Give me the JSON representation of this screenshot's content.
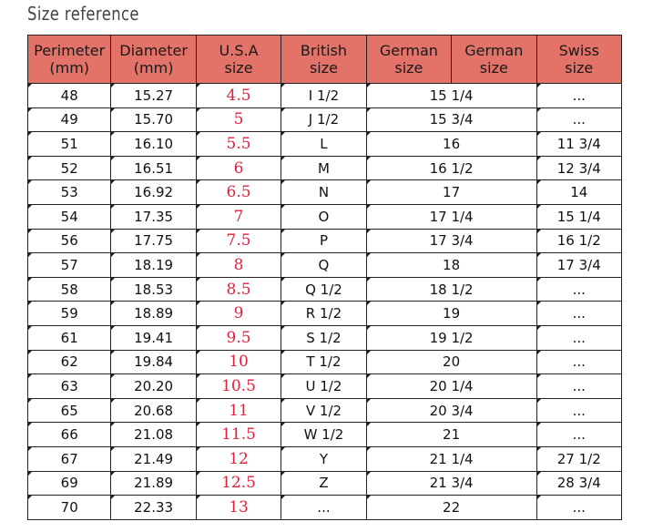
{
  "title": "Size reference",
  "headers": {
    "perimeter": [
      "Perimeter",
      "(mm)"
    ],
    "diameter": [
      "Diameter",
      "(mm)"
    ],
    "us": [
      "U.S.A",
      "size"
    ],
    "british": [
      "British",
      "size"
    ],
    "german1": [
      "German",
      "size"
    ],
    "german2": [
      "German",
      "size"
    ],
    "swiss": [
      "Swiss",
      "size"
    ]
  },
  "rows": [
    {
      "perimeter": "48",
      "diameter": "15.27",
      "us": "4.5",
      "british": "I 1/2",
      "german": "15 1/4",
      "swiss": "..."
    },
    {
      "perimeter": "49",
      "diameter": "15.70",
      "us": "5",
      "british": "J 1/2",
      "german": "15 3/4",
      "swiss": "..."
    },
    {
      "perimeter": "51",
      "diameter": "16.10",
      "us": "5.5",
      "british": "L",
      "german": "16",
      "swiss": "11 3/4"
    },
    {
      "perimeter": "52",
      "diameter": "16.51",
      "us": "6",
      "british": "M",
      "german": "16 1/2",
      "swiss": "12 3/4"
    },
    {
      "perimeter": "53",
      "diameter": "16.92",
      "us": "6.5",
      "british": "N",
      "german": "17",
      "swiss": "14"
    },
    {
      "perimeter": "54",
      "diameter": "17.35",
      "us": "7",
      "british": "O",
      "german": "17 1/4",
      "swiss": "15 1/4"
    },
    {
      "perimeter": "56",
      "diameter": "17.75",
      "us": "7.5",
      "british": "P",
      "german": "17 3/4",
      "swiss": "16 1/2"
    },
    {
      "perimeter": "57",
      "diameter": "18.19",
      "us": "8",
      "british": "Q",
      "german": "18",
      "swiss": "17 3/4"
    },
    {
      "perimeter": "58",
      "diameter": "18.53",
      "us": "8.5",
      "british": "Q 1/2",
      "german": "18 1/2",
      "swiss": "..."
    },
    {
      "perimeter": "59",
      "diameter": "18.89",
      "us": "9",
      "british": "R 1/2",
      "german": "19",
      "swiss": "..."
    },
    {
      "perimeter": "61",
      "diameter": "19.41",
      "us": "9.5",
      "british": "S 1/2",
      "german": "19 1/2",
      "swiss": "..."
    },
    {
      "perimeter": "62",
      "diameter": "19.84",
      "us": "10",
      "british": "T 1/2",
      "german": "20",
      "swiss": "..."
    },
    {
      "perimeter": "63",
      "diameter": "20.20",
      "us": "10.5",
      "british": "U 1/2",
      "german": "20 1/4",
      "swiss": "..."
    },
    {
      "perimeter": "65",
      "diameter": "20.68",
      "us": "11",
      "british": "V 1/2",
      "german": "20 3/4",
      "swiss": "..."
    },
    {
      "perimeter": "66",
      "diameter": "21.08",
      "us": "11.5",
      "british": "W 1/2",
      "german": "21",
      "swiss": "..."
    },
    {
      "perimeter": "67",
      "diameter": "21.49",
      "us": "12",
      "british": "Y",
      "german": "21 1/4",
      "swiss": "27 1/2"
    },
    {
      "perimeter": "69",
      "diameter": "21.89",
      "us": "12.5",
      "british": "Z",
      "german": "21 3/4",
      "swiss": "28 3/4"
    },
    {
      "perimeter": "70",
      "diameter": "22.33",
      "us": "13",
      "british": "...",
      "german": "22",
      "swiss": "..."
    }
  ],
  "colors": {
    "header_bg": "#e37268",
    "us_text": "#e0203c"
  }
}
